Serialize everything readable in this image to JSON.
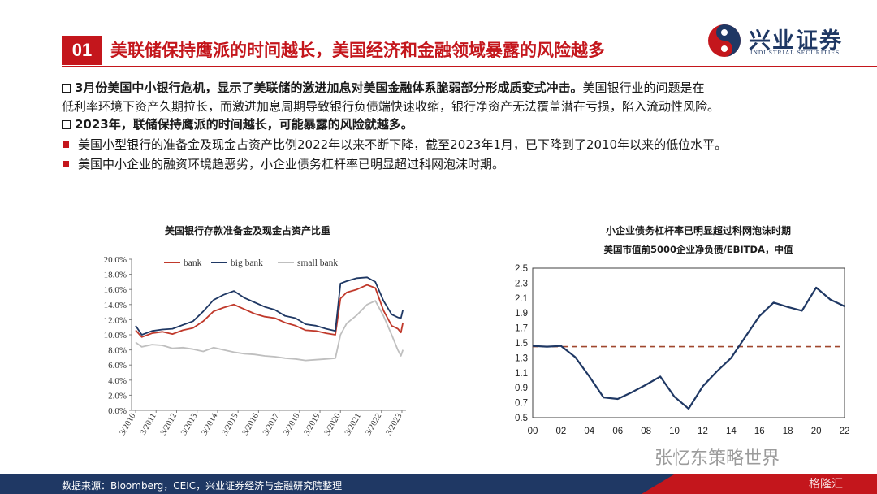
{
  "header": {
    "badge": "01",
    "title": "美联储保持鹰派的时间越长，美国经济和金融领域暴露的风险越多",
    "logo_cn": "兴业证券",
    "logo_en": "INDUSTRIAL SECURITIES",
    "colors": {
      "accent": "#c4161c",
      "navy": "#1f3864"
    }
  },
  "bullets": {
    "p1_line1": "3月份美国中小银行危机，显示了美联储的激进加息对美国金融体系脆弱部分形成质变式冲击。",
    "p1_line1_rest": "美国银行业的问题是在",
    "p1_line2": "低利率环境下资产久期拉长，而激进加息周期导致银行负债端快速收缩，银行净资产无法覆盖潜在亏损，陷入流动性风险。",
    "p2": "2023年，联储保持鹰派的时间越长，可能暴露的风险就越多。",
    "s1": "美国小型银行的准备金及现金占资产比例2022年以来不断下降，截至2023年1月，已下降到了2010年以来的低位水平。",
    "s2": "美国中小企业的融资环境趋恶劣，小企业债务杠杆率已明显超过科网泡沫时期。"
  },
  "chart1_title": "美国银行存款准备金及现金占资产比重",
  "chart2_title": "小企业债务杠杆率已明显超过科网泡沫时期",
  "chart2_subtitle": "美国市值前5000企业净负债/EBITDA，中值",
  "chart_data": [
    {
      "type": "line",
      "ylim": [
        0,
        20
      ],
      "yticks": [
        "0.0%",
        "2.0%",
        "4.0%",
        "6.0%",
        "8.0%",
        "10.0%",
        "12.0%",
        "14.0%",
        "16.0%",
        "18.0%",
        "20.0%"
      ],
      "categories": [
        "3/2010",
        "3/2011",
        "3/2012",
        "3/2013",
        "3/2014",
        "3/2015",
        "3/2016",
        "3/2017",
        "3/2018",
        "3/2019",
        "3/2020",
        "3/2021",
        "3/2022",
        "3/2023"
      ],
      "legend_position": "top",
      "series": [
        {
          "name": "bank",
          "color": "#c0392b",
          "points": [
            [
              2010.2,
              10.6
            ],
            [
              2010.5,
              9.7
            ],
            [
              2011.0,
              10.2
            ],
            [
              2011.5,
              10.4
            ],
            [
              2012.0,
              10.1
            ],
            [
              2012.5,
              10.6
            ],
            [
              2013.0,
              10.9
            ],
            [
              2013.5,
              11.8
            ],
            [
              2014.0,
              13.1
            ],
            [
              2014.5,
              13.6
            ],
            [
              2015.0,
              14.0
            ],
            [
              2015.5,
              13.4
            ],
            [
              2016.0,
              12.8
            ],
            [
              2016.5,
              12.4
            ],
            [
              2017.0,
              12.2
            ],
            [
              2017.5,
              11.6
            ],
            [
              2018.0,
              11.2
            ],
            [
              2018.5,
              10.6
            ],
            [
              2019.0,
              10.5
            ],
            [
              2019.5,
              10.2
            ],
            [
              2019.95,
              10.0
            ],
            [
              2020.2,
              14.8
            ],
            [
              2020.5,
              15.6
            ],
            [
              2021.0,
              16.0
            ],
            [
              2021.5,
              16.6
            ],
            [
              2021.9,
              16.2
            ],
            [
              2022.3,
              13.2
            ],
            [
              2022.7,
              11.2
            ],
            [
              2023.0,
              10.8
            ],
            [
              2023.15,
              10.3
            ],
            [
              2023.25,
              11.6
            ]
          ]
        },
        {
          "name": "big bank",
          "color": "#1f3864",
          "points": [
            [
              2010.2,
              11.2
            ],
            [
              2010.5,
              10.0
            ],
            [
              2011.0,
              10.5
            ],
            [
              2011.5,
              10.7
            ],
            [
              2012.0,
              10.8
            ],
            [
              2012.5,
              11.3
            ],
            [
              2013.0,
              11.8
            ],
            [
              2013.5,
              13.1
            ],
            [
              2014.0,
              14.6
            ],
            [
              2014.5,
              15.3
            ],
            [
              2015.0,
              15.8
            ],
            [
              2015.5,
              14.9
            ],
            [
              2016.0,
              14.3
            ],
            [
              2016.5,
              13.7
            ],
            [
              2017.0,
              13.3
            ],
            [
              2017.5,
              12.5
            ],
            [
              2018.0,
              12.2
            ],
            [
              2018.5,
              11.4
            ],
            [
              2019.0,
              11.2
            ],
            [
              2019.5,
              10.8
            ],
            [
              2019.95,
              10.5
            ],
            [
              2020.2,
              16.8
            ],
            [
              2020.5,
              17.1
            ],
            [
              2021.0,
              17.5
            ],
            [
              2021.5,
              17.6
            ],
            [
              2021.9,
              17.0
            ],
            [
              2022.3,
              14.5
            ],
            [
              2022.7,
              12.7
            ],
            [
              2023.0,
              12.3
            ],
            [
              2023.15,
              12.2
            ],
            [
              2023.25,
              13.3
            ]
          ]
        },
        {
          "name": "small bank",
          "color": "#bfbfbf",
          "points": [
            [
              2010.2,
              9.0
            ],
            [
              2010.5,
              8.4
            ],
            [
              2011.0,
              8.7
            ],
            [
              2011.5,
              8.6
            ],
            [
              2012.0,
              8.2
            ],
            [
              2012.5,
              8.3
            ],
            [
              2013.0,
              8.1
            ],
            [
              2013.5,
              7.8
            ],
            [
              2014.0,
              8.3
            ],
            [
              2014.5,
              8.0
            ],
            [
              2015.0,
              7.7
            ],
            [
              2015.5,
              7.5
            ],
            [
              2016.0,
              7.4
            ],
            [
              2016.5,
              7.2
            ],
            [
              2017.0,
              7.1
            ],
            [
              2017.5,
              6.9
            ],
            [
              2018.0,
              6.8
            ],
            [
              2018.5,
              6.6
            ],
            [
              2019.0,
              6.7
            ],
            [
              2019.5,
              6.8
            ],
            [
              2019.95,
              6.9
            ],
            [
              2020.2,
              10.0
            ],
            [
              2020.5,
              11.5
            ],
            [
              2021.0,
              12.6
            ],
            [
              2021.5,
              14.0
            ],
            [
              2021.9,
              14.5
            ],
            [
              2022.3,
              12.5
            ],
            [
              2022.7,
              10.0
            ],
            [
              2023.0,
              8.0
            ],
            [
              2023.15,
              7.2
            ],
            [
              2023.25,
              8.0
            ]
          ]
        }
      ]
    },
    {
      "type": "line",
      "ylim": [
        0.5,
        2.5
      ],
      "yticks": [
        "0.5",
        "0.7",
        "0.9",
        "1.1",
        "1.3",
        "1.5",
        "1.7",
        "1.9",
        "2.1",
        "2.3",
        "2.5"
      ],
      "xticks": [
        "00",
        "02",
        "04",
        "06",
        "08",
        "10",
        "12",
        "14",
        "16",
        "18",
        "20",
        "22"
      ],
      "reference_line": {
        "value": 1.45,
        "color": "#a0472e",
        "style": "dashed"
      },
      "series": [
        {
          "color": "#1f3864",
          "points": [
            [
              0,
              1.46
            ],
            [
              1,
              1.45
            ],
            [
              2,
              1.46
            ],
            [
              3,
              1.31
            ],
            [
              4,
              1.05
            ],
            [
              5,
              0.77
            ],
            [
              6,
              0.75
            ],
            [
              7,
              0.84
            ],
            [
              8,
              0.94
            ],
            [
              9,
              1.05
            ],
            [
              10,
              0.78
            ],
            [
              11,
              0.62
            ],
            [
              12,
              0.92
            ],
            [
              13,
              1.12
            ],
            [
              14,
              1.3
            ],
            [
              15,
              1.58
            ],
            [
              16,
              1.86
            ],
            [
              17,
              2.04
            ],
            [
              18,
              1.98
            ],
            [
              19,
              1.93
            ],
            [
              20,
              2.24
            ],
            [
              21,
              2.08
            ],
            [
              22,
              1.99
            ]
          ]
        }
      ]
    }
  ],
  "footer": {
    "source": "数据来源：Bloomberg，CEIC，兴业证券经济与金融研究院整理",
    "watermark": "张忆东策略世界",
    "watermark2": "格隆汇"
  }
}
